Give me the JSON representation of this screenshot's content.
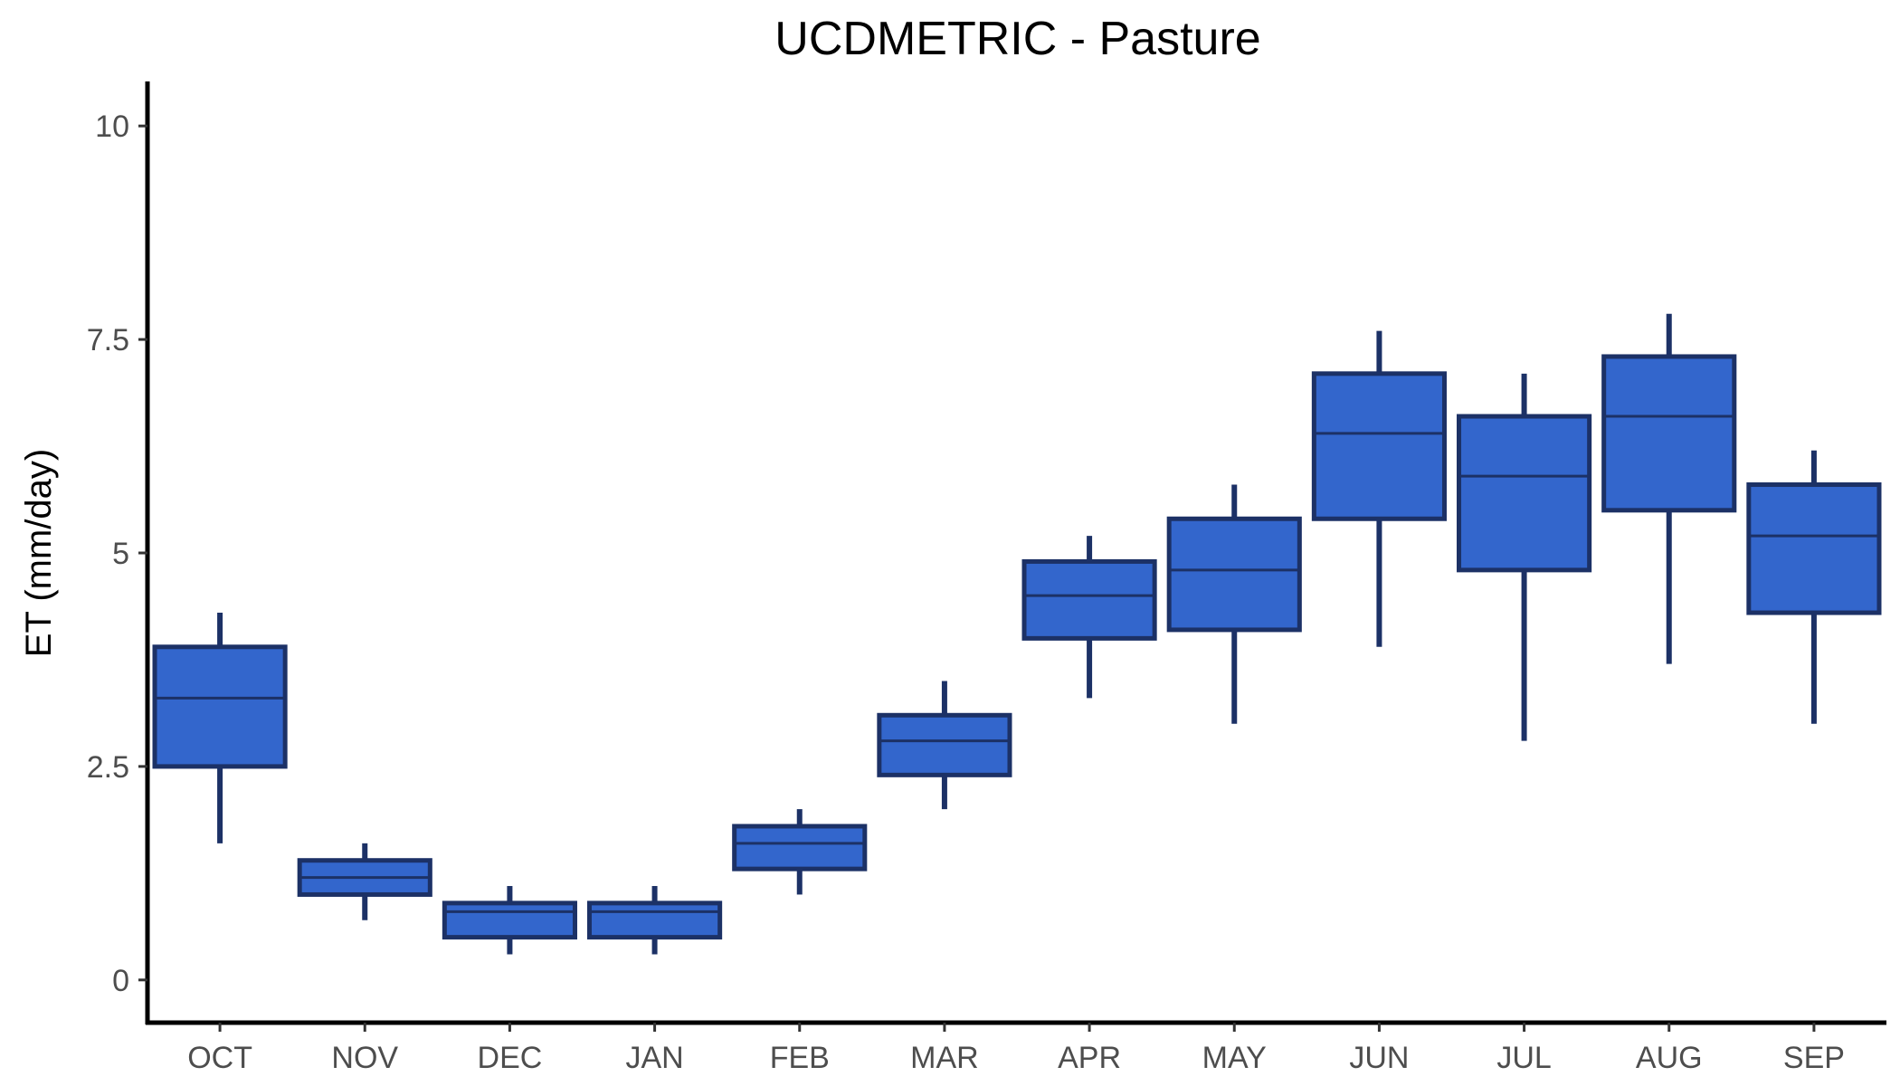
{
  "chart_data": {
    "type": "box",
    "title": "UCDMETRIC - Pasture",
    "xlabel": "",
    "ylabel": "ET (mm/day)",
    "ylim": [
      -0.5,
      10.5
    ],
    "yticks": [
      0,
      2.5,
      5,
      7.5,
      10
    ],
    "ytick_labels": [
      "0",
      "2.5",
      "5",
      "7.5",
      "10"
    ],
    "grid": false,
    "box_fill": "#3366cc",
    "box_stroke": "#1c3166",
    "categories": [
      "OCT",
      "NOV",
      "DEC",
      "JAN",
      "FEB",
      "MAR",
      "APR",
      "MAY",
      "JUN",
      "JUL",
      "AUG",
      "SEP"
    ],
    "boxes": [
      {
        "category": "OCT",
        "min": 1.6,
        "q1": 2.5,
        "median": 3.3,
        "q3": 3.9,
        "max": 4.3
      },
      {
        "category": "NOV",
        "min": 0.7,
        "q1": 1.0,
        "median": 1.2,
        "q3": 1.4,
        "max": 1.6
      },
      {
        "category": "DEC",
        "min": 0.3,
        "q1": 0.5,
        "median": 0.8,
        "q3": 0.9,
        "max": 1.1
      },
      {
        "category": "JAN",
        "min": 0.3,
        "q1": 0.5,
        "median": 0.8,
        "q3": 0.9,
        "max": 1.1
      },
      {
        "category": "FEB",
        "min": 1.0,
        "q1": 1.3,
        "median": 1.6,
        "q3": 1.8,
        "max": 2.0
      },
      {
        "category": "MAR",
        "min": 2.0,
        "q1": 2.4,
        "median": 2.8,
        "q3": 3.1,
        "max": 3.5
      },
      {
        "category": "APR",
        "min": 3.3,
        "q1": 4.0,
        "median": 4.5,
        "q3": 4.9,
        "max": 5.2
      },
      {
        "category": "MAY",
        "min": 3.0,
        "q1": 4.1,
        "median": 4.8,
        "q3": 5.4,
        "max": 5.8
      },
      {
        "category": "JUN",
        "min": 3.9,
        "q1": 5.4,
        "median": 6.4,
        "q3": 7.1,
        "max": 7.6
      },
      {
        "category": "JUL",
        "min": 2.8,
        "q1": 4.8,
        "median": 5.9,
        "q3": 6.6,
        "max": 7.1
      },
      {
        "category": "AUG",
        "min": 3.7,
        "q1": 5.5,
        "median": 6.6,
        "q3": 7.3,
        "max": 7.8
      },
      {
        "category": "SEP",
        "min": 3.0,
        "q1": 4.3,
        "median": 5.2,
        "q3": 5.8,
        "max": 6.2
      }
    ]
  }
}
